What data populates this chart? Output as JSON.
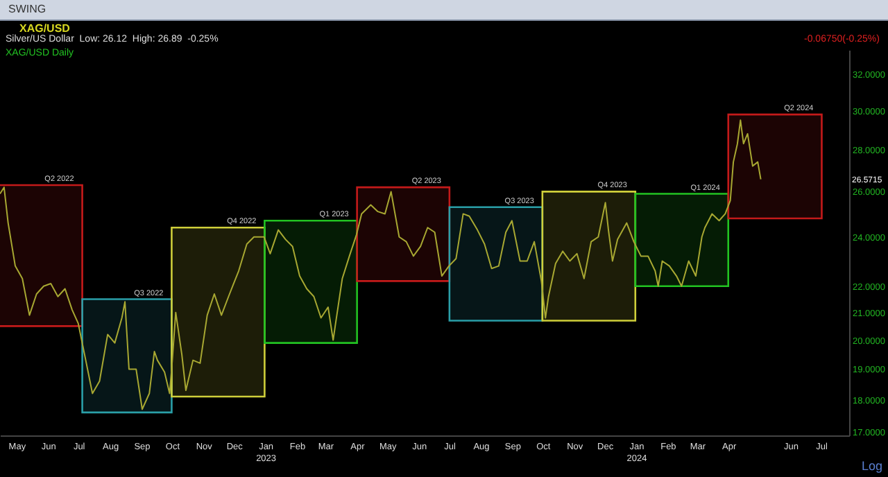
{
  "chart_data": {
    "type": "line",
    "title": "XAG/USD",
    "subtitle": "Silver/US Dollar  Low: 26.12  High: 26.89  -0.25%",
    "series": [
      {
        "type": "bar",
        "x": [
          "2022-05-23",
          "2022-08-15",
          "2022-11-15",
          "2023-02-14",
          "2023-05-16",
          "2023-08-15",
          "2023-11-15",
          "2024-02-14",
          "2024-05-16"
        ],
        "base": [
          20.5,
          17.6,
          18.1,
          19.9,
          22.2,
          20.7,
          20.7,
          22.0,
          24.8
        ],
        "values": [
          5.8,
          3.9,
          6.3,
          4.8,
          4.0,
          4.6,
          5.3,
          3.9,
          5.0
        ],
        "colors": [
          "#c41a1a",
          "#2a9fa8",
          "#cfcf3a",
          "#22c322",
          "#c41a1a",
          "#2a9fa8",
          "#cfcf3a",
          "#22c322",
          "#c41a1a"
        ],
        "value_labels": [
          "Q2 2022",
          "Q3 2022",
          "Q4 2022",
          "Q1 2023",
          "Q2 2023",
          "Q3 2023",
          "Q4 2023",
          "Q1 2024",
          "Q2 2024"
        ]
      },
      {
        "name": "XAG/USD Daily",
        "color": "#a8a832",
        "x": [
          "2022-04-14",
          "2022-04-18",
          "2022-04-22",
          "2022-04-29",
          "2022-05-06",
          "2022-05-13",
          "2022-05-20",
          "2022-05-27",
          "2022-06-03",
          "2022-06-10",
          "2022-06-17",
          "2022-06-24",
          "2022-06-30",
          "2022-07-08",
          "2022-07-14",
          "2022-07-21",
          "2022-07-29",
          "2022-08-05",
          "2022-08-12",
          "2022-08-15",
          "2022-08-19",
          "2022-08-26",
          "2022-09-01",
          "2022-09-08",
          "2022-09-13",
          "2022-09-16",
          "2022-09-23",
          "2022-09-28",
          "2022-09-30",
          "2022-10-04",
          "2022-10-10",
          "2022-10-14",
          "2022-10-21",
          "2022-10-28",
          "2022-11-04",
          "2022-11-11",
          "2022-11-18",
          "2022-11-25",
          "2022-11-30",
          "2022-12-05",
          "2022-12-13",
          "2022-12-20",
          "2022-12-30",
          "2023-01-05",
          "2023-01-13",
          "2023-01-20",
          "2023-01-27",
          "2023-02-03",
          "2023-02-10",
          "2023-02-17",
          "2023-02-24",
          "2023-03-03",
          "2023-03-08",
          "2023-03-10",
          "2023-03-17",
          "2023-03-24",
          "2023-03-31",
          "2023-04-05",
          "2023-04-14",
          "2023-04-21",
          "2023-04-28",
          "2023-05-04",
          "2023-05-12",
          "2023-05-19",
          "2023-05-26",
          "2023-06-02",
          "2023-06-09",
          "2023-06-16",
          "2023-06-23",
          "2023-06-30",
          "2023-07-07",
          "2023-07-14",
          "2023-07-20",
          "2023-07-28",
          "2023-08-04",
          "2023-08-11",
          "2023-08-18",
          "2023-08-25",
          "2023-08-31",
          "2023-09-08",
          "2023-09-15",
          "2023-09-22",
          "2023-09-29",
          "2023-10-03",
          "2023-10-06",
          "2023-10-13",
          "2023-10-20",
          "2023-10-27",
          "2023-11-03",
          "2023-11-10",
          "2023-11-17",
          "2023-11-24",
          "2023-12-01",
          "2023-12-04",
          "2023-12-08",
          "2023-12-13",
          "2023-12-22",
          "2023-12-29",
          "2024-01-05",
          "2024-01-12",
          "2024-01-19",
          "2024-01-22",
          "2024-01-26",
          "2024-02-02",
          "2024-02-09",
          "2024-02-14",
          "2024-02-21",
          "2024-02-28",
          "2024-03-05",
          "2024-03-08",
          "2024-03-15",
          "2024-03-22",
          "2024-03-28",
          "2024-04-02",
          "2024-04-05",
          "2024-04-09",
          "2024-04-12",
          "2024-04-15",
          "2024-04-19",
          "2024-04-24",
          "2024-04-29",
          "2024-05-02"
        ],
        "values": [
          25.9,
          26.2,
          24.6,
          22.8,
          22.3,
          20.9,
          21.7,
          22.0,
          22.1,
          21.6,
          21.9,
          21.1,
          20.6,
          19.2,
          18.2,
          18.6,
          20.2,
          19.9,
          20.8,
          21.4,
          19.0,
          19.0,
          17.7,
          18.2,
          19.6,
          19.3,
          18.9,
          18.2,
          19.0,
          21.0,
          19.5,
          18.3,
          19.3,
          19.2,
          20.9,
          21.7,
          20.9,
          21.6,
          22.1,
          22.6,
          23.7,
          24.0,
          24.0,
          23.3,
          24.3,
          23.9,
          23.6,
          22.4,
          21.9,
          21.6,
          20.8,
          21.2,
          20.0,
          20.5,
          22.3,
          23.2,
          24.1,
          25.0,
          25.4,
          25.1,
          25.0,
          26.0,
          24.0,
          23.8,
          23.2,
          23.6,
          24.4,
          24.2,
          22.4,
          22.8,
          23.1,
          25.0,
          24.9,
          24.3,
          23.7,
          22.7,
          22.8,
          24.2,
          24.7,
          23.0,
          23.0,
          23.8,
          22.2,
          20.8,
          21.6,
          22.9,
          23.4,
          23.0,
          23.3,
          22.3,
          23.8,
          24.0,
          25.5,
          24.3,
          23.0,
          23.9,
          24.6,
          23.8,
          23.2,
          23.2,
          22.6,
          22.0,
          23.0,
          22.8,
          22.4,
          22.0,
          23.0,
          22.4,
          24.0,
          24.4,
          25.0,
          24.7,
          25.0,
          25.6,
          27.4,
          28.3,
          29.5,
          28.3,
          28.8,
          27.2,
          27.4,
          26.5715
        ]
      }
    ],
    "log": true,
    "grid": false,
    "legend": "top left",
    "marker": "none",
    "line_style": "solid",
    "xlim": [
      "2022-04-14",
      "2024-07-28"
    ],
    "xticks": [
      {
        "value": "2022-05-01",
        "label": "May"
      },
      {
        "value": "2022-06-01",
        "label": "Jun"
      },
      {
        "value": "2022-07-01",
        "label": "Jul"
      },
      {
        "value": "2022-08-01",
        "label": "Aug"
      },
      {
        "value": "2022-09-01",
        "label": "Sep"
      },
      {
        "value": "2022-10-01",
        "label": "Oct"
      },
      {
        "value": "2022-11-01",
        "label": "Nov"
      },
      {
        "value": "2022-12-01",
        "label": "Dec"
      },
      {
        "value": "2023-01-01",
        "label": "Jan 2023"
      },
      {
        "value": "2023-02-01",
        "label": "Feb"
      },
      {
        "value": "2023-03-01",
        "label": "Mar"
      },
      {
        "value": "2023-04-01",
        "label": "Apr"
      },
      {
        "value": "2023-05-01",
        "label": "May"
      },
      {
        "value": "2023-06-01",
        "label": "Jun"
      },
      {
        "value": "2023-07-01",
        "label": "Jul"
      },
      {
        "value": "2023-08-01",
        "label": "Aug"
      },
      {
        "value": "2023-09-01",
        "label": "Sep"
      },
      {
        "value": "2023-10-01",
        "label": "Oct"
      },
      {
        "value": "2023-11-01",
        "label": "Nov"
      },
      {
        "value": "2023-12-01",
        "label": "Dec"
      },
      {
        "value": "2024-01-01",
        "label": "Jan 2024"
      },
      {
        "value": "2024-02-01",
        "label": "Feb"
      },
      {
        "value": "2024-03-01",
        "label": "Mar"
      },
      {
        "value": "2024-04-01",
        "label": "Apr"
      },
      {
        "value": "2024-06-01",
        "label": "Jun"
      },
      {
        "value": "2024-07-01",
        "label": "Jul"
      }
    ],
    "ylim": [
      16.9,
      33.4
    ],
    "yticks": [
      {
        "value": 17,
        "label": "17.0000"
      },
      {
        "value": 18,
        "label": "18.0000"
      },
      {
        "value": 19,
        "label": "19.0000"
      },
      {
        "value": 20,
        "label": "20.0000"
      },
      {
        "value": 21,
        "label": "21.0000"
      },
      {
        "value": 22,
        "label": "22.0000"
      },
      {
        "value": 24,
        "label": "24.0000"
      },
      {
        "value": 26,
        "label": "26.0000"
      },
      {
        "value": 28,
        "label": "28.0000"
      },
      {
        "value": 30,
        "label": "30.0000"
      },
      {
        "value": 32,
        "label": "32.0000"
      }
    ],
    "annotations": [
      "SWING",
      "-0.06750(-0.25%)",
      "Log",
      "26.5715"
    ]
  }
}
